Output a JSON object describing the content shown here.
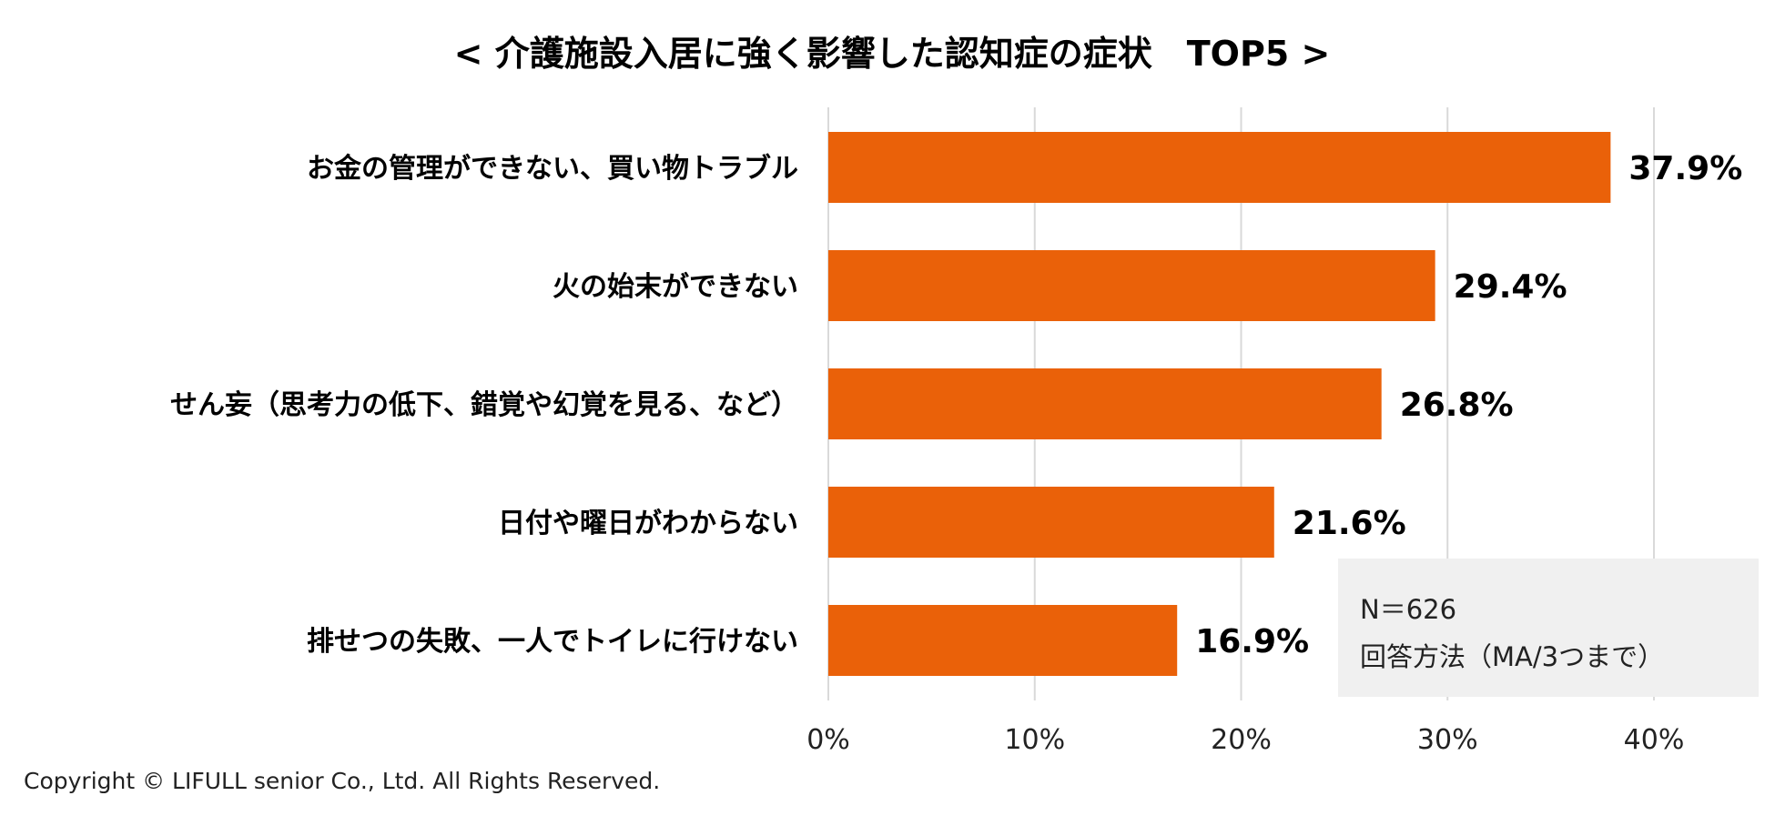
{
  "chart_data": {
    "type": "bar",
    "orientation": "horizontal",
    "title": "< 介護施設入居に強く影響した認知症の症状　TOP5 >",
    "categories": [
      "お金の管理ができない、買い物トラブル",
      "火の始末ができない",
      "せん妄（思考力の低下、錯覚や幻覚を見る、など）",
      "日付や曜日がわからない",
      "排せつの失敗、一人でトイレに行けない"
    ],
    "values": [
      37.9,
      29.4,
      26.8,
      21.6,
      16.9
    ],
    "value_labels": [
      "37.9%",
      "29.4%",
      "26.8%",
      "21.6%",
      "16.9%"
    ],
    "xlim": [
      0,
      40
    ],
    "x_ticks": [
      0,
      10,
      20,
      30,
      40
    ],
    "x_tick_labels": [
      "0%",
      "10%",
      "20%",
      "30%",
      "40%"
    ],
    "xlabel": "",
    "ylabel": "",
    "grid": "vertical",
    "bar_color": "#EA6109",
    "grid_color": "#d9d9d9"
  },
  "note": {
    "sample_size": "N＝626",
    "method": "回答方法（MA/3つまで）"
  },
  "footer": {
    "copyright": "Copyright © LIFULL senior Co., Ltd. All Rights Reserved."
  }
}
